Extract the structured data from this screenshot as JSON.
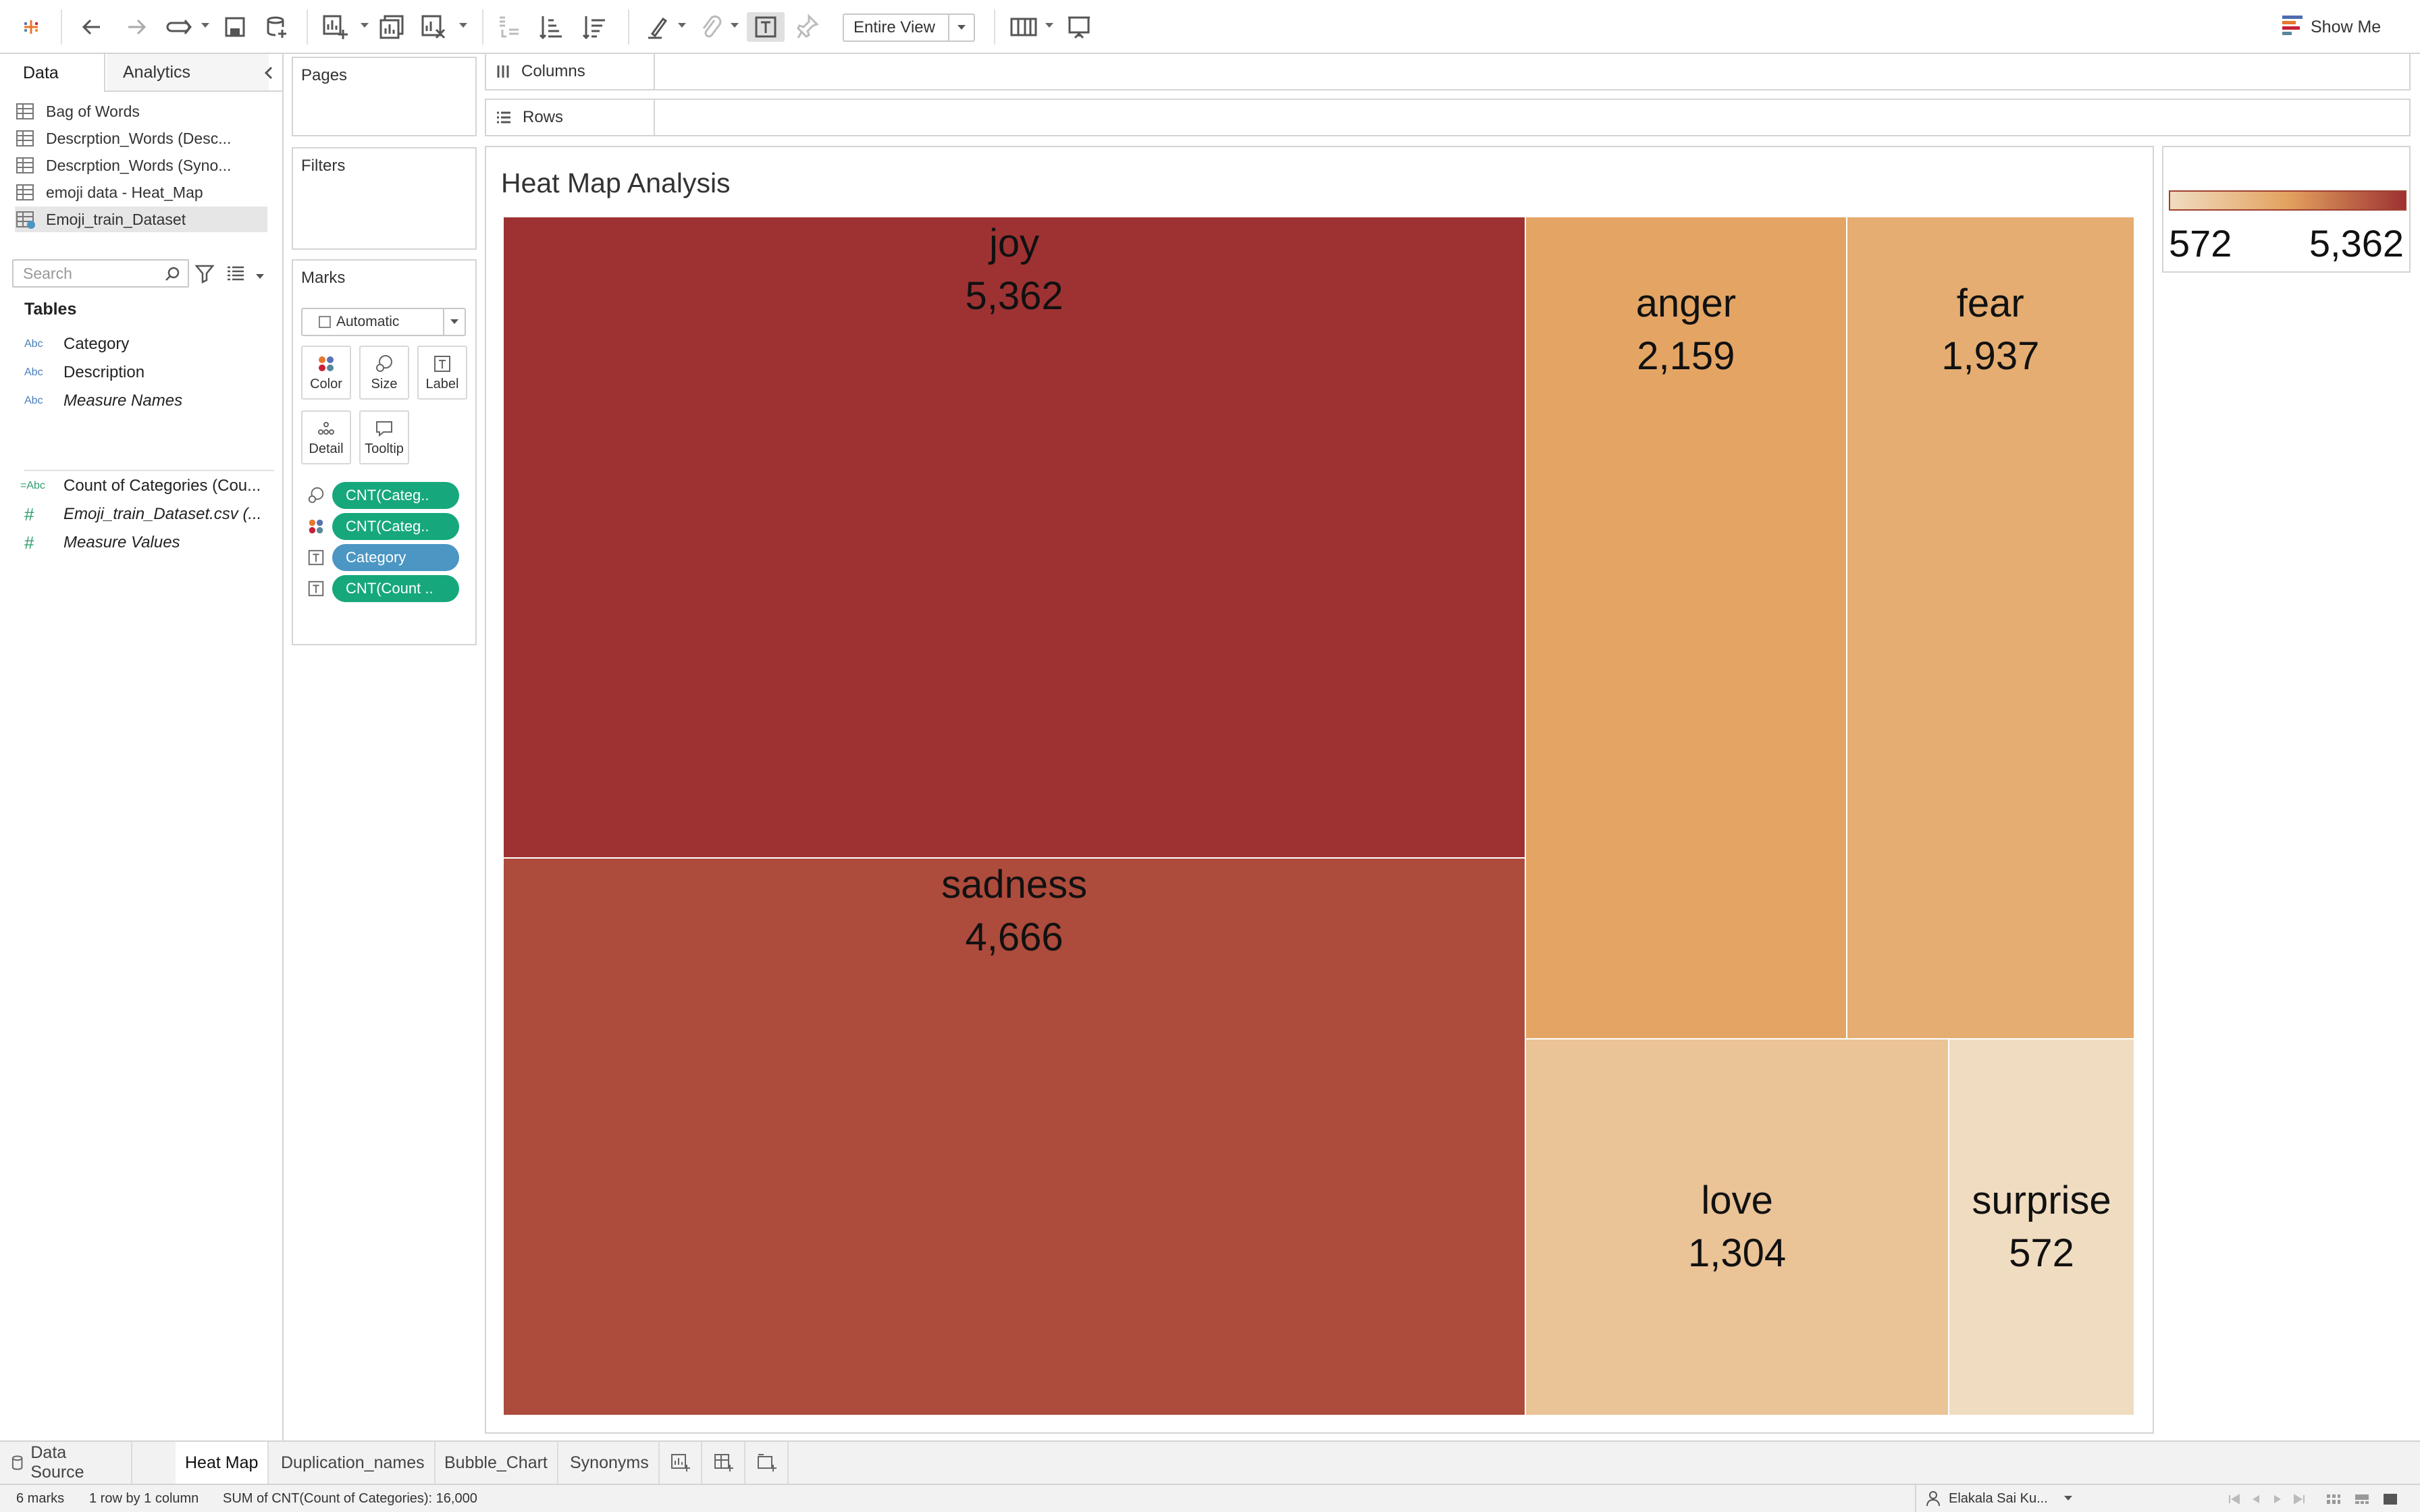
{
  "toolbar": {
    "fit_value": "Entire View",
    "show_me_label": "Show Me"
  },
  "left_pane": {
    "tabs": [
      "Data",
      "Analytics"
    ],
    "data_sources": [
      "Bag of Words",
      "Descrption_Words (Desc...",
      "Descrption_Words (Syno...",
      "emoji data - Heat_Map",
      "Emoji_train_Dataset"
    ],
    "active_data_source": "Emoji_train_Dataset",
    "search_placeholder": "Search",
    "tables_heading": "Tables",
    "fields": [
      {
        "type": "Abc",
        "name": "Category"
      },
      {
        "type": "Abc",
        "name": "Description"
      },
      {
        "type": "Abc",
        "name": "Measure Names"
      },
      {
        "type": "=Abc",
        "name": "Count of Categories (Cou..."
      },
      {
        "type": "#",
        "name": "Emoji_train_Dataset.csv (..."
      },
      {
        "type": "#",
        "name": "Measure Values"
      }
    ]
  },
  "cards": {
    "pages_title": "Pages",
    "filters_title": "Filters",
    "marks_title": "Marks",
    "mark_type": "Automatic",
    "mark_buttons": [
      "Color",
      "Size",
      "Label",
      "Detail",
      "Tooltip"
    ],
    "pills": [
      {
        "icon": "size-icon",
        "label": "CNT(Categ..",
        "kind": "measure"
      },
      {
        "icon": "color-icon",
        "label": "CNT(Categ..",
        "kind": "measure"
      },
      {
        "icon": "label-icon",
        "label": "Category",
        "kind": "dim"
      },
      {
        "icon": "label-icon",
        "label": "CNT(Count ..",
        "kind": "measure"
      }
    ]
  },
  "shelves": {
    "columns_label": "Columns",
    "rows_label": "Rows"
  },
  "view": {
    "title": "Heat Map Analysis"
  },
  "chart_data": {
    "type": "heatmap",
    "subtype": "treemap",
    "title": "Heat Map Analysis",
    "items": [
      {
        "category": "joy",
        "value": 5362,
        "label": "5,362"
      },
      {
        "category": "sadness",
        "value": 4666,
        "label": "4,666"
      },
      {
        "category": "anger",
        "value": 2159,
        "label": "2,159"
      },
      {
        "category": "fear",
        "value": 1937,
        "label": "1,937"
      },
      {
        "category": "love",
        "value": 1304,
        "label": "1,304"
      },
      {
        "category": "surprise",
        "value": 572,
        "label": "572"
      }
    ],
    "color_scale": {
      "min": 572,
      "max": 5362,
      "min_color": "#f0dcc0",
      "max_color": "#9e3232"
    }
  },
  "legend": {
    "min_label": "572",
    "max_label": "5,362"
  },
  "sheet_tabs": {
    "data_source": "Data Source",
    "sheets": [
      "Heat Map",
      "Duplication_names",
      "Bubble_Chart",
      "Synonyms"
    ],
    "active": "Heat Map"
  },
  "status_bar": {
    "marks": "6 marks",
    "dimensions": "1 row by 1 column",
    "sum": "SUM of CNT(Count of Categories): 16,000",
    "user": "Elakala Sai Ku..."
  }
}
